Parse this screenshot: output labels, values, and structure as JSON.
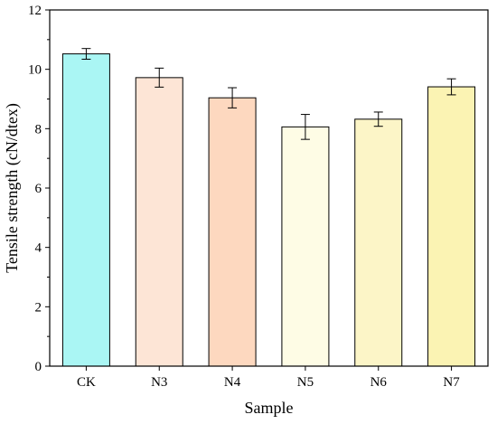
{
  "chart_data": {
    "type": "bar",
    "title": "",
    "xlabel": "Sample",
    "ylabel": "Tensile strength (cN/dtex)",
    "categories": [
      "CK",
      "N3",
      "N4",
      "N5",
      "N6",
      "N7"
    ],
    "values": [
      10.52,
      9.72,
      9.04,
      8.06,
      8.32,
      9.41
    ],
    "errors": [
      0.18,
      0.32,
      0.34,
      0.42,
      0.24,
      0.27
    ],
    "colors": [
      "#aaf6f4",
      "#fde5d6",
      "#fdd8bf",
      "#fefce5",
      "#fcf5c7",
      "#fbf3b3"
    ],
    "ylim": [
      0,
      12
    ],
    "yticks": [
      0,
      2,
      4,
      6,
      8,
      10,
      12
    ],
    "grid": false,
    "legend": "none"
  }
}
